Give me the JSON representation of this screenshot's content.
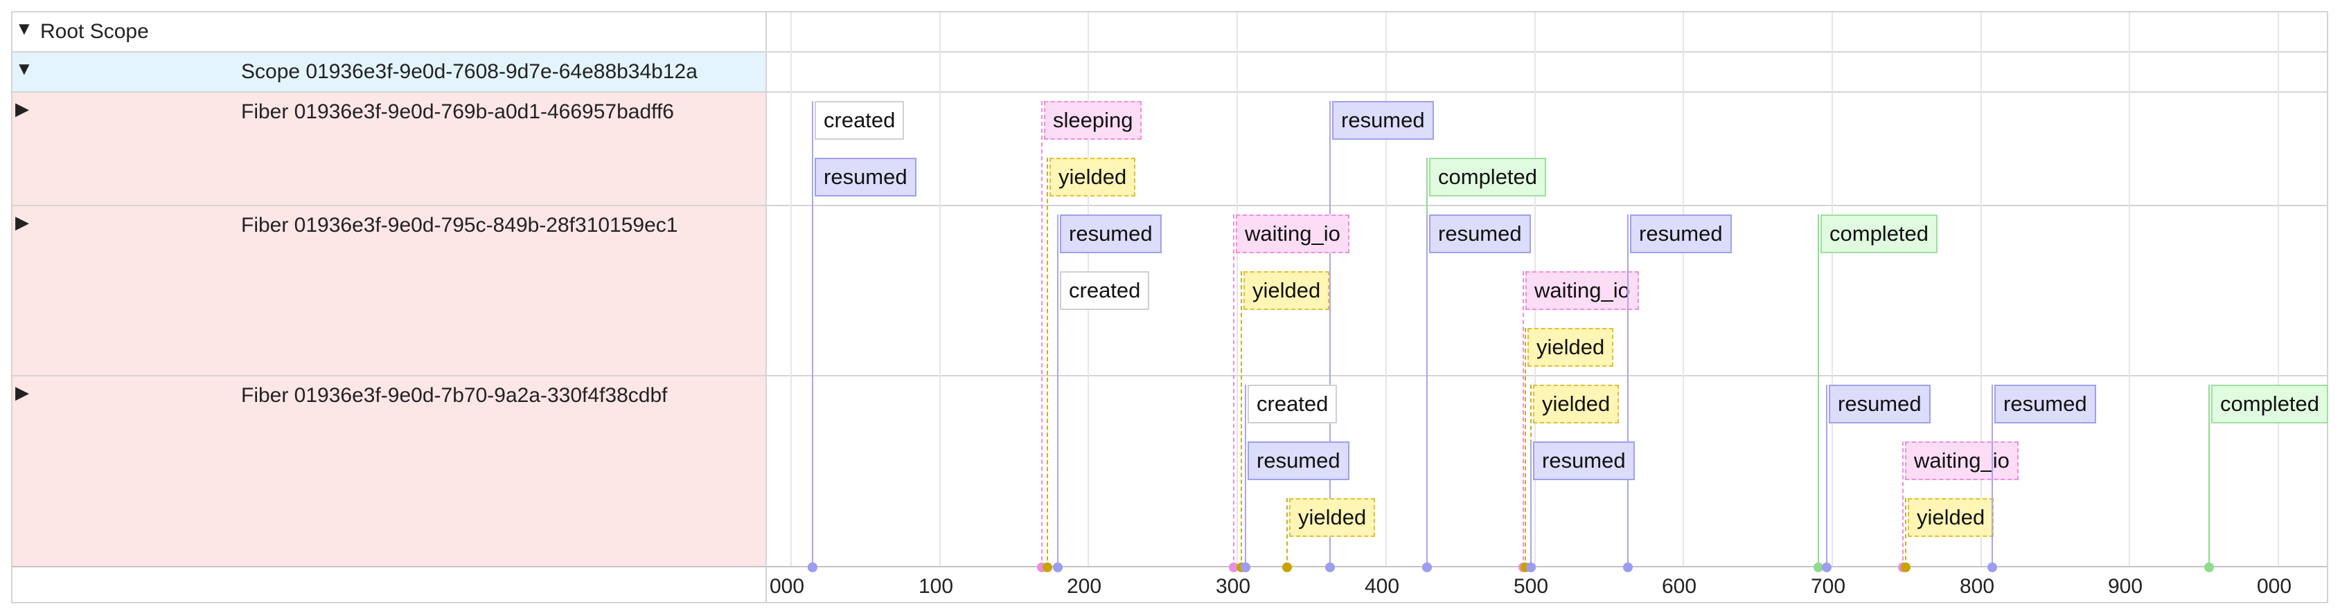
{
  "rows": {
    "root": {
      "toggle": "▼",
      "label": "Root Scope"
    },
    "scope": {
      "toggle": "▼",
      "label": "Scope 01936e3f-9e0d-7608-9d7e-64e88b34b12a"
    },
    "fiber1": {
      "toggle": "▶",
      "label": "Fiber 01936e3f-9e0d-769b-a0d1-466957badff6"
    },
    "fiber2": {
      "toggle": "▶",
      "label": "Fiber 01936e3f-9e0d-795c-849b-28f310159ec1"
    },
    "fiber3": {
      "toggle": "▶",
      "label": "Fiber 01936e3f-9e0d-7b70-9a2a-330f4f38cdbf"
    }
  },
  "axis": {
    "ticks": [
      "000",
      "100",
      "200",
      "300",
      "400",
      "500",
      "600",
      "700",
      "800",
      "900",
      "000"
    ]
  },
  "colors": {
    "scope_row_bg": "#e3f4fd",
    "fiber_row_bg": "#fde6e6",
    "created": "#ffffff",
    "resumed": "#dcdcfb",
    "sleeping": "#fddcf5",
    "waiting_io": "#fddcf5",
    "yielded": "#fff5b4",
    "completed": "#e0fbe0"
  },
  "events": [
    {
      "fiber": 1,
      "kind": "created",
      "label": "created",
      "t": 15
    },
    {
      "fiber": 1,
      "kind": "resumed",
      "label": "resumed",
      "t": 15
    },
    {
      "fiber": 1,
      "kind": "sleeping",
      "label": "sleeping",
      "t": 169
    },
    {
      "fiber": 1,
      "kind": "yielded",
      "label": "yielded",
      "t": 173
    },
    {
      "fiber": 1,
      "kind": "resumed",
      "label": "resumed",
      "t": 363
    },
    {
      "fiber": 1,
      "kind": "completed",
      "label": "completed",
      "t": 428
    },
    {
      "fiber": 2,
      "kind": "resumed",
      "label": "resumed",
      "t": 180
    },
    {
      "fiber": 2,
      "kind": "created",
      "label": "created",
      "t": 180
    },
    {
      "fiber": 2,
      "kind": "waiting_io",
      "label": "waiting_io",
      "t": 298
    },
    {
      "fiber": 2,
      "kind": "yielded",
      "label": "yielded",
      "t": 303
    },
    {
      "fiber": 2,
      "kind": "resumed",
      "label": "resumed",
      "t": 428
    },
    {
      "fiber": 2,
      "kind": "waiting_io",
      "label": "waiting_io",
      "t": 493
    },
    {
      "fiber": 2,
      "kind": "yielded",
      "label": "yielded",
      "t": 494
    },
    {
      "fiber": 2,
      "kind": "resumed",
      "label": "resumed",
      "t": 563
    },
    {
      "fiber": 2,
      "kind": "completed",
      "label": "completed",
      "t": 691
    },
    {
      "fiber": 3,
      "kind": "created",
      "label": "created",
      "t": 306
    },
    {
      "fiber": 3,
      "kind": "resumed",
      "label": "resumed",
      "t": 306
    },
    {
      "fiber": 3,
      "kind": "yielded",
      "label": "yielded",
      "t": 334
    },
    {
      "fiber": 3,
      "kind": "yielded",
      "label": "yielded",
      "t": 498
    },
    {
      "fiber": 3,
      "kind": "resumed",
      "label": "resumed",
      "t": 498
    },
    {
      "fiber": 3,
      "kind": "resumed",
      "label": "resumed",
      "t": 697
    },
    {
      "fiber": 3,
      "kind": "waiting_io",
      "label": "waiting_io",
      "t": 748
    },
    {
      "fiber": 3,
      "kind": "yielded",
      "label": "yielded",
      "t": 750
    },
    {
      "fiber": 3,
      "kind": "resumed",
      "label": "resumed",
      "t": 808
    },
    {
      "fiber": 3,
      "kind": "completed",
      "label": "completed",
      "t": 954
    }
  ]
}
